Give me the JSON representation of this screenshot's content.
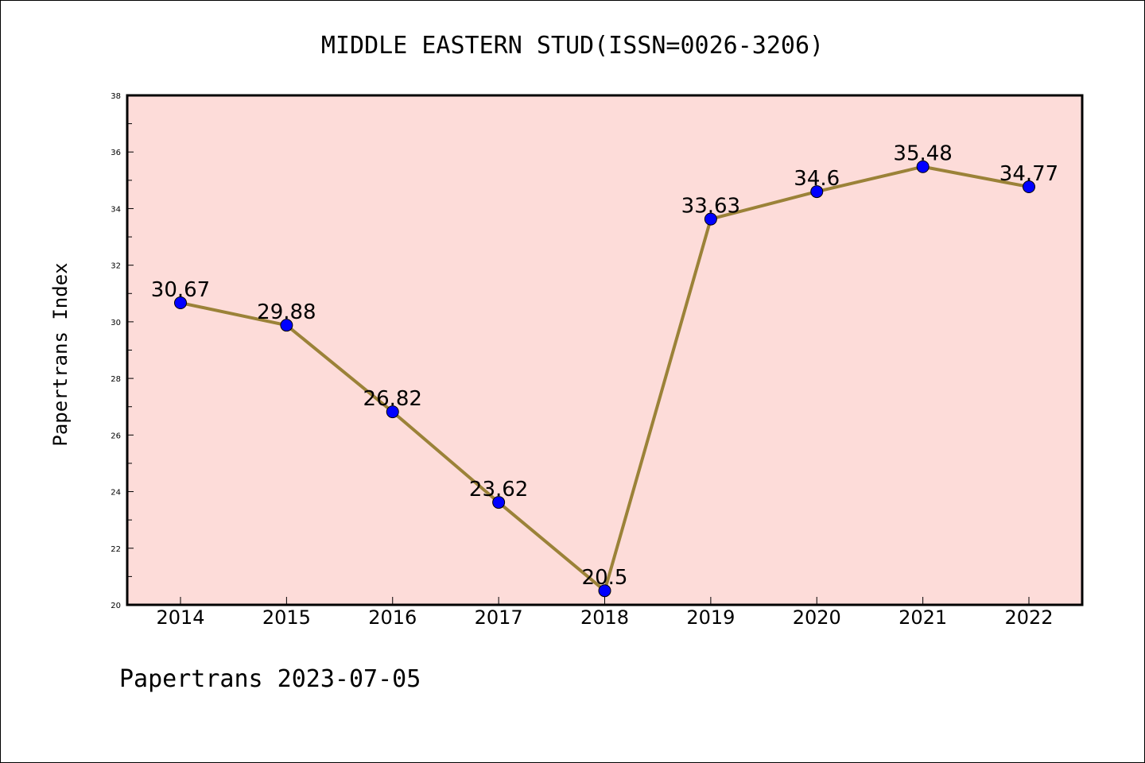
{
  "chart_data": {
    "type": "line",
    "title": "MIDDLE EASTERN STUD(ISSN=0026-3206)",
    "xlabel": "",
    "ylabel": "Papertrans Index",
    "categories": [
      "2014",
      "2015",
      "2016",
      "2017",
      "2018",
      "2019",
      "2020",
      "2021",
      "2022"
    ],
    "series": [
      {
        "values": [
          30.67,
          29.88,
          26.82,
          23.62,
          20.5,
          33.63,
          34.6,
          35.48,
          34.77
        ],
        "data_labels": [
          "30.67",
          "29.88",
          "26.82",
          "23.62",
          "20.5",
          "33.63",
          "34.6",
          "35.48",
          "34.77"
        ]
      }
    ],
    "ylim": [
      20,
      38
    ],
    "yticks": [
      20,
      22,
      24,
      26,
      28,
      30,
      32,
      34,
      36,
      38
    ],
    "grid": false,
    "legend": "none",
    "colors": {
      "plot_background": "#fddcd9",
      "line": "#9b8238",
      "marker": "#0000ff"
    }
  },
  "footer": {
    "text": "Papertrans 2023-07-05"
  }
}
